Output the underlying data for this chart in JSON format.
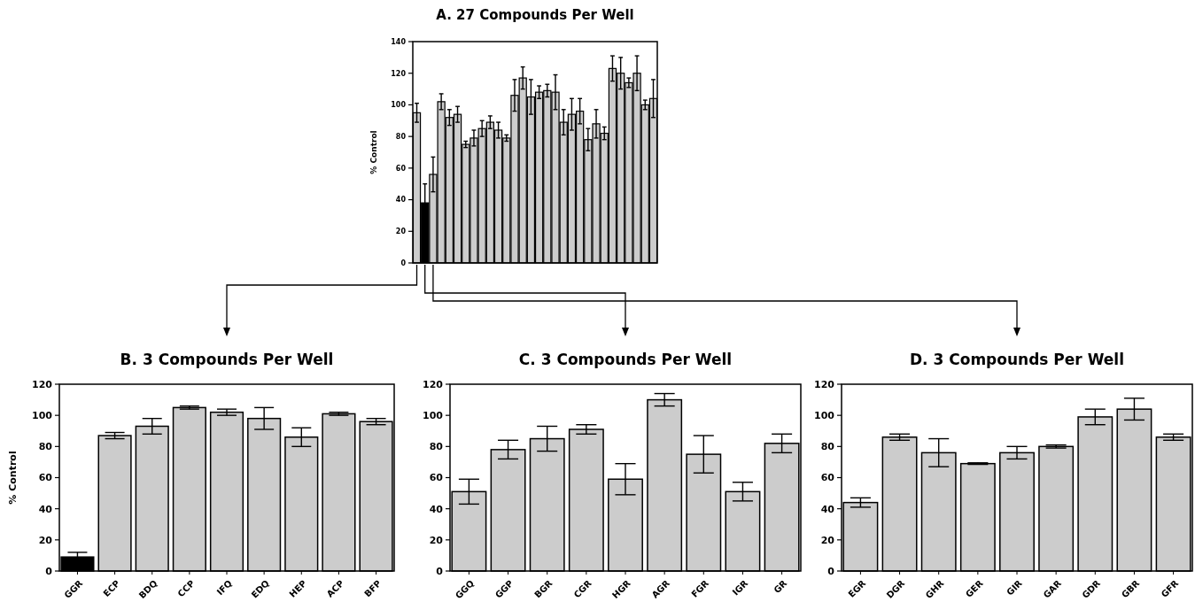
{
  "chart_data": [
    {
      "type": "bar",
      "title": "A.  27 Compounds Per Well",
      "ylabel": "% Control",
      "categories": [
        null,
        null,
        null,
        null,
        null,
        null,
        null,
        null,
        null,
        null,
        null,
        null,
        null,
        null,
        null,
        null,
        null,
        null,
        null,
        null,
        null,
        null,
        null,
        null,
        null,
        null,
        null,
        null,
        null,
        null
      ],
      "values": [
        95,
        38,
        56,
        102,
        92,
        94,
        75,
        79,
        85,
        89,
        84,
        79,
        106,
        117,
        105,
        108,
        109,
        108,
        89,
        94,
        96,
        78,
        88,
        82,
        123,
        120,
        114,
        120,
        100,
        104
      ],
      "errors": [
        6,
        12,
        11,
        5,
        5,
        5,
        2,
        5,
        5,
        4,
        5,
        2,
        10,
        7,
        11,
        4,
        4,
        11,
        8,
        10,
        8,
        7,
        9,
        4,
        8,
        10,
        3,
        11,
        3,
        12
      ],
      "colors": [
        "#cccccc",
        "#000000",
        "#cccccc",
        "#cccccc",
        "#cccccc",
        "#cccccc",
        "#cccccc",
        "#cccccc",
        "#cccccc",
        "#cccccc",
        "#cccccc",
        "#cccccc",
        "#cccccc",
        "#cccccc",
        "#cccccc",
        "#cccccc",
        "#cccccc",
        "#cccccc",
        "#cccccc",
        "#cccccc",
        "#cccccc",
        "#cccccc",
        "#cccccc",
        "#cccccc",
        "#cccccc",
        "#cccccc",
        "#cccccc",
        "#cccccc",
        "#cccccc",
        "#cccccc"
      ],
      "ylim": [
        0,
        140
      ],
      "yticks": [
        0,
        20,
        40,
        60,
        80,
        100,
        120,
        140
      ],
      "tick_labels": "y"
    },
    {
      "type": "bar",
      "title": "B.  3 Compounds Per Well",
      "ylabel": "% Control",
      "categories": [
        "GGR",
        "ECP",
        "BDQ",
        "CCP",
        "IFQ",
        "EDQ",
        "HEP",
        "ACP",
        "BFP"
      ],
      "values": [
        9,
        87,
        93,
        105,
        102,
        98,
        86,
        101,
        96
      ],
      "errors": [
        3,
        2,
        5,
        1,
        2,
        7,
        6,
        1,
        2
      ],
      "colors": [
        "#000000",
        "#cccccc",
        "#cccccc",
        "#cccccc",
        "#cccccc",
        "#cccccc",
        "#cccccc",
        "#cccccc",
        "#cccccc"
      ],
      "ylim": [
        0,
        120
      ],
      "yticks": [
        0,
        20,
        40,
        60,
        80,
        100,
        120
      ]
    },
    {
      "type": "bar",
      "title": "C.  3 Compounds Per Well",
      "categories": [
        "GGQ",
        "GGP",
        "BGR",
        "CGR",
        "HGR",
        "AGR",
        "FGR",
        "IGR",
        "GR"
      ],
      "values": [
        51,
        78,
        85,
        91,
        59,
        110,
        75,
        51,
        82
      ],
      "errors": [
        8,
        6,
        8,
        3,
        10,
        4,
        12,
        6,
        6
      ],
      "colors": [
        "#cccccc",
        "#cccccc",
        "#cccccc",
        "#cccccc",
        "#cccccc",
        "#cccccc",
        "#cccccc",
        "#cccccc",
        "#cccccc"
      ],
      "ylim": [
        0,
        120
      ],
      "yticks": [
        0,
        20,
        40,
        60,
        80,
        100,
        120
      ]
    },
    {
      "type": "bar",
      "title": "D.  3 Compounds Per Well",
      "categories": [
        "EGR",
        "DGR",
        "GHR",
        "GER",
        "GIR",
        "GAR",
        "GDR",
        "GBR",
        "GFR"
      ],
      "values": [
        44,
        86,
        76,
        69,
        76,
        80,
        99,
        104,
        86
      ],
      "errors": [
        3,
        2,
        9,
        0.5,
        4,
        1,
        5,
        7,
        2
      ],
      "colors": [
        "#cccccc",
        "#cccccc",
        "#cccccc",
        "#cccccc",
        "#cccccc",
        "#cccccc",
        "#cccccc",
        "#cccccc",
        "#cccccc"
      ],
      "ylim": [
        0,
        120
      ],
      "yticks": [
        0,
        20,
        40,
        60,
        80,
        100,
        120
      ]
    }
  ]
}
